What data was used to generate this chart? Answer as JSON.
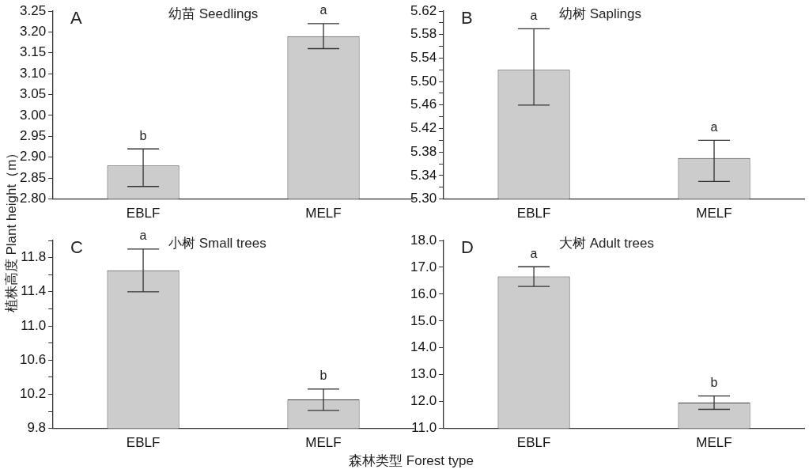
{
  "chart_data": [
    {
      "type": "bar",
      "title": "幼苗 Seedlings",
      "ylabel": "植株高度 Plant height（m）",
      "categories": [
        "EBLF",
        "MELF"
      ],
      "values": [
        2.88,
        3.19
      ],
      "errors": [
        [
          2.83,
          2.92
        ],
        [
          3.16,
          3.22
        ]
      ],
      "color": "#cccccc",
      "ylim": [
        2.8,
        3.25
      ],
      "yticks": [
        {
          "value": 2.8,
          "label": "2.80"
        },
        2.85,
        {
          "value": 2.9,
          "label": "2.90"
        },
        2.95,
        {
          "value": 3.0,
          "label": "3.00"
        },
        3.05,
        {
          "value": 3.1,
          "label": "3.10"
        },
        3.15,
        {
          "value": 3.2,
          "label": "3.20"
        },
        3.25
      ],
      "grid": false,
      "legend": false,
      "annotations": [
        "A",
        "b",
        "a"
      ]
    },
    {
      "type": "bar",
      "title": "幼树 Saplings",
      "categories": [
        "EBLF",
        "MELF"
      ],
      "values": [
        5.52,
        5.37
      ],
      "errors": [
        [
          5.46,
          5.59
        ],
        [
          5.33,
          5.4
        ]
      ],
      "color": "#cccccc",
      "ylim": [
        5.3,
        5.62
      ],
      "yticks": [
        {
          "value": 5.3,
          "label": "5.30"
        },
        {
          "value": 5.32,
          "label": null
        },
        5.34,
        {
          "value": 5.36,
          "label": null
        },
        5.38,
        {
          "value": 5.4,
          "label": null
        },
        5.42,
        {
          "value": 5.44,
          "label": null
        },
        5.46,
        {
          "value": 5.48,
          "label": null
        },
        {
          "value": 5.5,
          "label": "5.50"
        },
        {
          "value": 5.52,
          "label": null
        },
        5.54,
        {
          "value": 5.56,
          "label": null
        },
        5.58,
        {
          "value": 5.6,
          "label": null
        },
        5.62
      ],
      "grid": false,
      "legend": false,
      "annotations": [
        "B",
        "a",
        "a"
      ]
    },
    {
      "type": "bar",
      "title": "小树 Small trees",
      "categories": [
        "EBLF",
        "MELF"
      ],
      "values": [
        11.65,
        10.14
      ],
      "errors": [
        [
          11.4,
          11.9
        ],
        [
          10.01,
          10.26
        ]
      ],
      "color": "#cccccc",
      "ylim": [
        9.8,
        12.0
      ],
      "yticks": [
        9.8,
        {
          "value": 10.0,
          "label": null
        },
        10.2,
        {
          "value": 10.4,
          "label": null
        },
        10.6,
        {
          "value": 10.8,
          "label": null
        },
        {
          "value": 11.0,
          "label": "11.0"
        },
        {
          "value": 11.2,
          "label": null
        },
        11.4,
        {
          "value": 11.6,
          "label": null
        },
        11.8,
        {
          "value": 12.0,
          "label": null
        }
      ],
      "grid": false,
      "legend": false,
      "xlabel": "森林类型 Forest type",
      "annotations": [
        "C",
        "a",
        "b"
      ]
    },
    {
      "type": "bar",
      "title": "大树 Adult trees",
      "categories": [
        "EBLF",
        "MELF"
      ],
      "values": [
        16.66,
        11.96
      ],
      "errors": [
        [
          16.29,
          17.02
        ],
        [
          11.71,
          12.21
        ]
      ],
      "color": "#cccccc",
      "ylim": [
        11.0,
        18.0
      ],
      "yticks": [
        {
          "value": 11.0,
          "label": "11.0"
        },
        {
          "value": 12.0,
          "label": "12.0"
        },
        {
          "value": 13.0,
          "label": "13.0"
        },
        {
          "value": 14.0,
          "label": "14.0"
        },
        {
          "value": 15.0,
          "label": "15.0"
        },
        {
          "value": 16.0,
          "label": "16.0"
        },
        {
          "value": 17.0,
          "label": "17.0"
        },
        {
          "value": 18.0,
          "label": "18.0"
        }
      ],
      "grid": false,
      "legend": false,
      "annotations": [
        "D",
        "a",
        "b"
      ]
    }
  ]
}
